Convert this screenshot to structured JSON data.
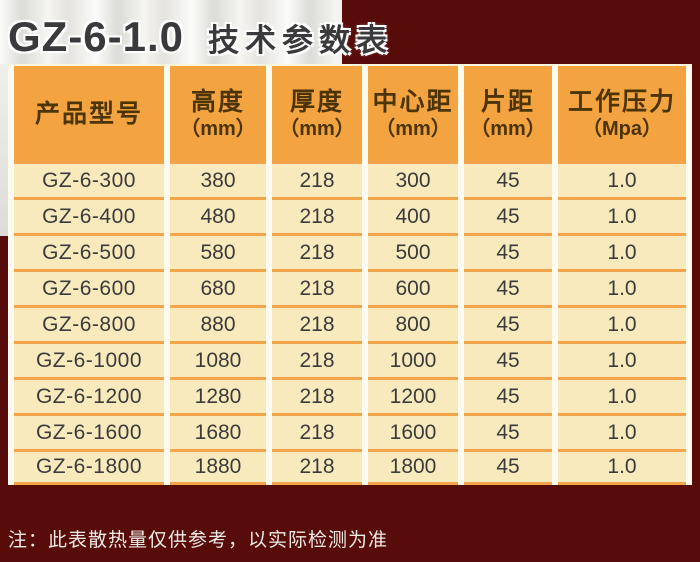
{
  "title": {
    "model": "GZ-6-1.0",
    "label": "技术参数表"
  },
  "table": {
    "headers": [
      {
        "label": "产品型号",
        "unit": ""
      },
      {
        "label": "高度",
        "unit": "（mm）"
      },
      {
        "label": "厚度",
        "unit": "（mm）"
      },
      {
        "label": "中心距",
        "unit": "（mm）"
      },
      {
        "label": "片距",
        "unit": "（mm）"
      },
      {
        "label": "工作压力",
        "unit": "（Mpa）"
      }
    ],
    "rows": [
      [
        "GZ-6-300",
        "380",
        "218",
        "300",
        "45",
        "1.0"
      ],
      [
        "GZ-6-400",
        "480",
        "218",
        "400",
        "45",
        "1.0"
      ],
      [
        "GZ-6-500",
        "580",
        "218",
        "500",
        "45",
        "1.0"
      ],
      [
        "GZ-6-600",
        "680",
        "218",
        "600",
        "45",
        "1.0"
      ],
      [
        "GZ-6-800",
        "880",
        "218",
        "800",
        "45",
        "1.0"
      ],
      [
        "GZ-6-1000",
        "1080",
        "218",
        "1000",
        "45",
        "1.0"
      ],
      [
        "GZ-6-1200",
        "1280",
        "218",
        "1200",
        "45",
        "1.0"
      ],
      [
        "GZ-6-1600",
        "1680",
        "218",
        "1600",
        "45",
        "1.0"
      ],
      [
        "GZ-6-1800",
        "1880",
        "218",
        "1800",
        "45",
        "1.0"
      ]
    ]
  },
  "note": "注：此表散热量仅供参考，以实际检测为准",
  "colors": {
    "background_maroon": "#580c0a",
    "header_orange": "#f3a440",
    "cell_cream": "#f8eabc",
    "row_separator_orange": "#f4a54c",
    "gutter_white": "#fdfaef",
    "header_text_brown": "#4c3407",
    "note_text_white": "#eeebe6",
    "title_text_gray": "#3a3a3c"
  }
}
